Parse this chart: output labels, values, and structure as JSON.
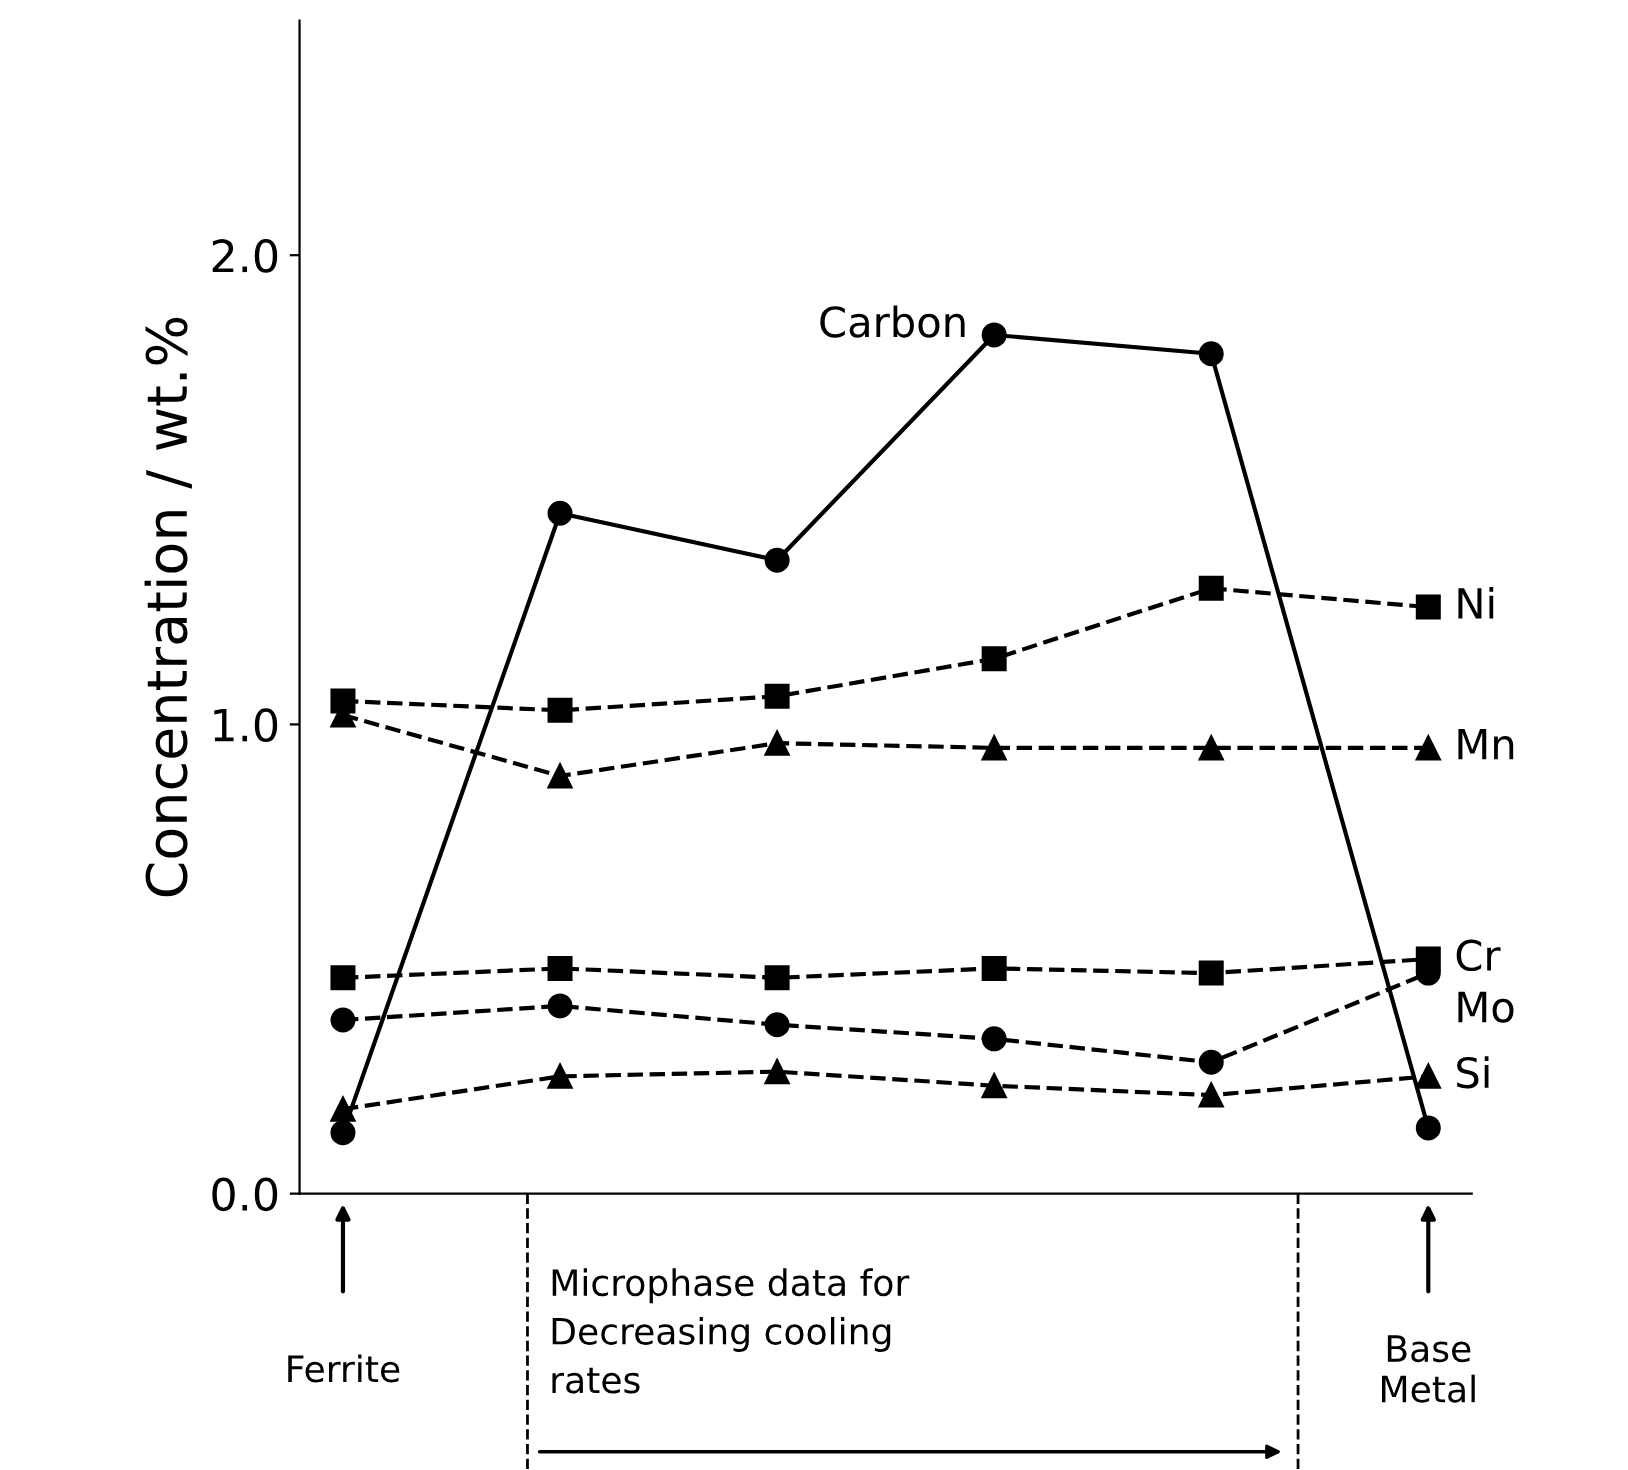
{
  "chart_data": {
    "type": "line",
    "ylabel": "Concentration / wt.%",
    "categories": [
      null,
      null,
      null,
      null,
      null,
      null
    ],
    "ylim": [
      0,
      2.5
    ],
    "yticks": [
      {
        "value": 0,
        "label": "0.0"
      },
      {
        "value": 1,
        "label": "1.0"
      },
      {
        "value": 2,
        "label": "2.0"
      }
    ],
    "grid": false,
    "legend": false,
    "series": [
      {
        "name": "Carbon",
        "color": "#000000",
        "marker": "circle",
        "line_style": "solid",
        "values": [
          0.13,
          1.45,
          1.35,
          1.83,
          1.79,
          0.14
        ]
      },
      {
        "name": "Ni",
        "color": "#000000",
        "marker": "square",
        "line_style": "dashed",
        "values": [
          1.05,
          1.03,
          1.06,
          1.14,
          1.29,
          1.25
        ]
      },
      {
        "name": "Mn",
        "color": "#000000",
        "marker": "triangle",
        "line_style": "dashed",
        "values": [
          1.02,
          0.89,
          0.96,
          0.95,
          0.95,
          0.95
        ]
      },
      {
        "name": "Cr",
        "color": "#000000",
        "marker": "square",
        "line_style": "dashed",
        "values": [
          0.46,
          0.48,
          0.46,
          0.48,
          0.47,
          0.5
        ]
      },
      {
        "name": "Mo",
        "color": "#000000",
        "marker": "circle",
        "line_style": "dashed",
        "values": [
          0.37,
          0.4,
          0.36,
          0.33,
          0.28,
          0.47
        ]
      },
      {
        "name": "Si",
        "color": "#000000",
        "marker": "triangle",
        "line_style": "dashed",
        "values": [
          0.18,
          0.25,
          0.26,
          0.23,
          0.21,
          0.25
        ]
      }
    ],
    "annotations": [
      "Ferrite",
      "Microphase data for\nDecreasing cooling\nrates",
      "Base\nMetal"
    ]
  }
}
